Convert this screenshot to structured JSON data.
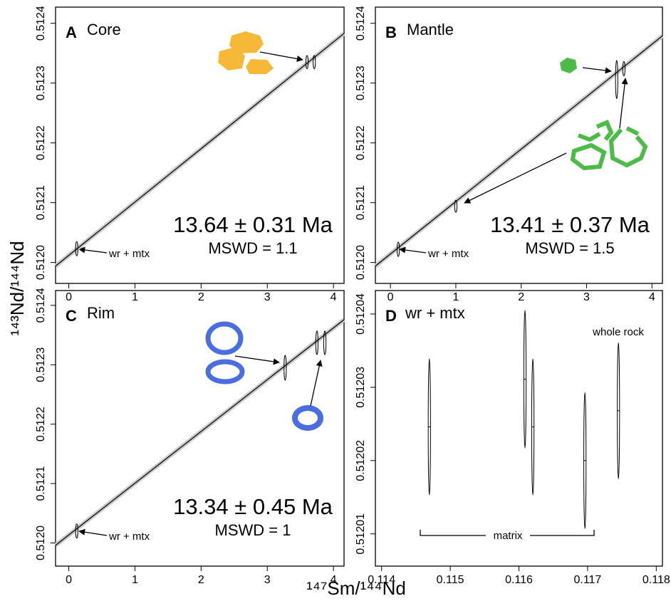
{
  "xlabel": "¹⁴⁷Sm/¹⁴⁴Nd",
  "ylabel": "¹⁴³Nd/¹⁴⁴Nd",
  "chart_data": [
    {
      "type": "scatter",
      "label": "A",
      "title": "Core",
      "age": "13.64 ± 0.31 Ma",
      "mswd": "MSWD = 1.1",
      "annotations": [
        "wr + mtx"
      ],
      "xlim": [
        -0.2,
        4.16
      ],
      "ylim": [
        0.511965,
        0.512427
      ],
      "xticks": [
        0,
        1,
        2,
        3,
        4
      ],
      "yticks": [
        {
          "value": 0.512,
          "label": "0.5120"
        },
        0.5121,
        0.5122,
        0.5123,
        0.5124
      ],
      "isochron": {
        "x": [
          -0.2,
          4.16
        ],
        "y": [
          0.511994,
          0.512383
        ]
      },
      "points": {
        "x": [
          0.12,
          3.6,
          3.71
        ],
        "y": [
          0.512023,
          0.512335,
          0.512335
        ],
        "y_err": [
          1.2e-05,
          1.1e-05,
          1.1e-05
        ]
      }
    },
    {
      "type": "scatter",
      "label": "B",
      "title": "Mantle",
      "age": "13.41 ± 0.37 Ma",
      "mswd": "MSWD = 1.5",
      "annotations": [
        "wr + mtx"
      ],
      "xlim": [
        -0.23,
        4.16
      ],
      "ylim": [
        0.511965,
        0.512427
      ],
      "xticks": [
        0,
        1,
        2,
        3,
        4
      ],
      "yticks": [
        {
          "value": 0.512,
          "label": "0.5120"
        },
        0.5121,
        0.5122,
        0.5123,
        0.5124
      ],
      "isochron": {
        "x": [
          -0.23,
          4.16
        ],
        "y": [
          0.511994,
          0.512379
        ]
      },
      "points": {
        "x": [
          0.12,
          1.0,
          3.46,
          3.57
        ],
        "y": [
          0.512022,
          0.512094,
          0.512306,
          0.512324
        ],
        "y_err": [
          1.2e-05,
          1e-05,
          3.2e-05,
          1.2e-05
        ]
      }
    },
    {
      "type": "scatter",
      "label": "C",
      "title": "Rim",
      "age": "13.34 ± 0.45 Ma",
      "mswd": "MSWD = 1",
      "annotations": [
        "wr + mtx"
      ],
      "xlim": [
        -0.2,
        4.16
      ],
      "ylim": [
        0.511961,
        0.512425
      ],
      "xticks": [
        0,
        1,
        2,
        3,
        4
      ],
      "yticks": [
        {
          "value": 0.512,
          "label": "0.5120"
        },
        0.5121,
        0.5122,
        0.5123,
        0.5124
      ],
      "isochron": {
        "x": [
          -0.2,
          4.16
        ],
        "y": [
          0.511996,
          0.512376
        ]
      },
      "points": {
        "x": [
          0.12,
          3.27,
          3.75,
          3.87
        ],
        "y": [
          0.51202,
          0.512295,
          0.512337,
          0.512337
        ],
        "y_err": [
          1.2e-05,
          2.1e-05,
          2e-05,
          2e-05
        ]
      }
    },
    {
      "type": "scatter",
      "label": "D",
      "title": "wr + mtx",
      "annotations": [
        "whole rock",
        "matrix"
      ],
      "xlim": [
        0.11391,
        0.11809
      ],
      "ylim": [
        0.5120056,
        0.5120432
      ],
      "xticks": [
        0.114,
        0.115,
        0.116,
        0.117,
        0.118
      ],
      "yticks": [
        0.51201,
        0.51202,
        0.51203,
        0.51204
      ],
      "points": {
        "x": [
          0.114696,
          0.116088,
          0.116203,
          0.116961,
          0.117449
        ],
        "y": [
          0.5120246,
          0.5120311,
          0.5120246,
          0.51202,
          0.5120268
        ],
        "y_err": [
          9.3e-06,
          9.4e-06,
          9.3e-06,
          9.3e-06,
          9.3e-06
        ]
      }
    }
  ]
}
